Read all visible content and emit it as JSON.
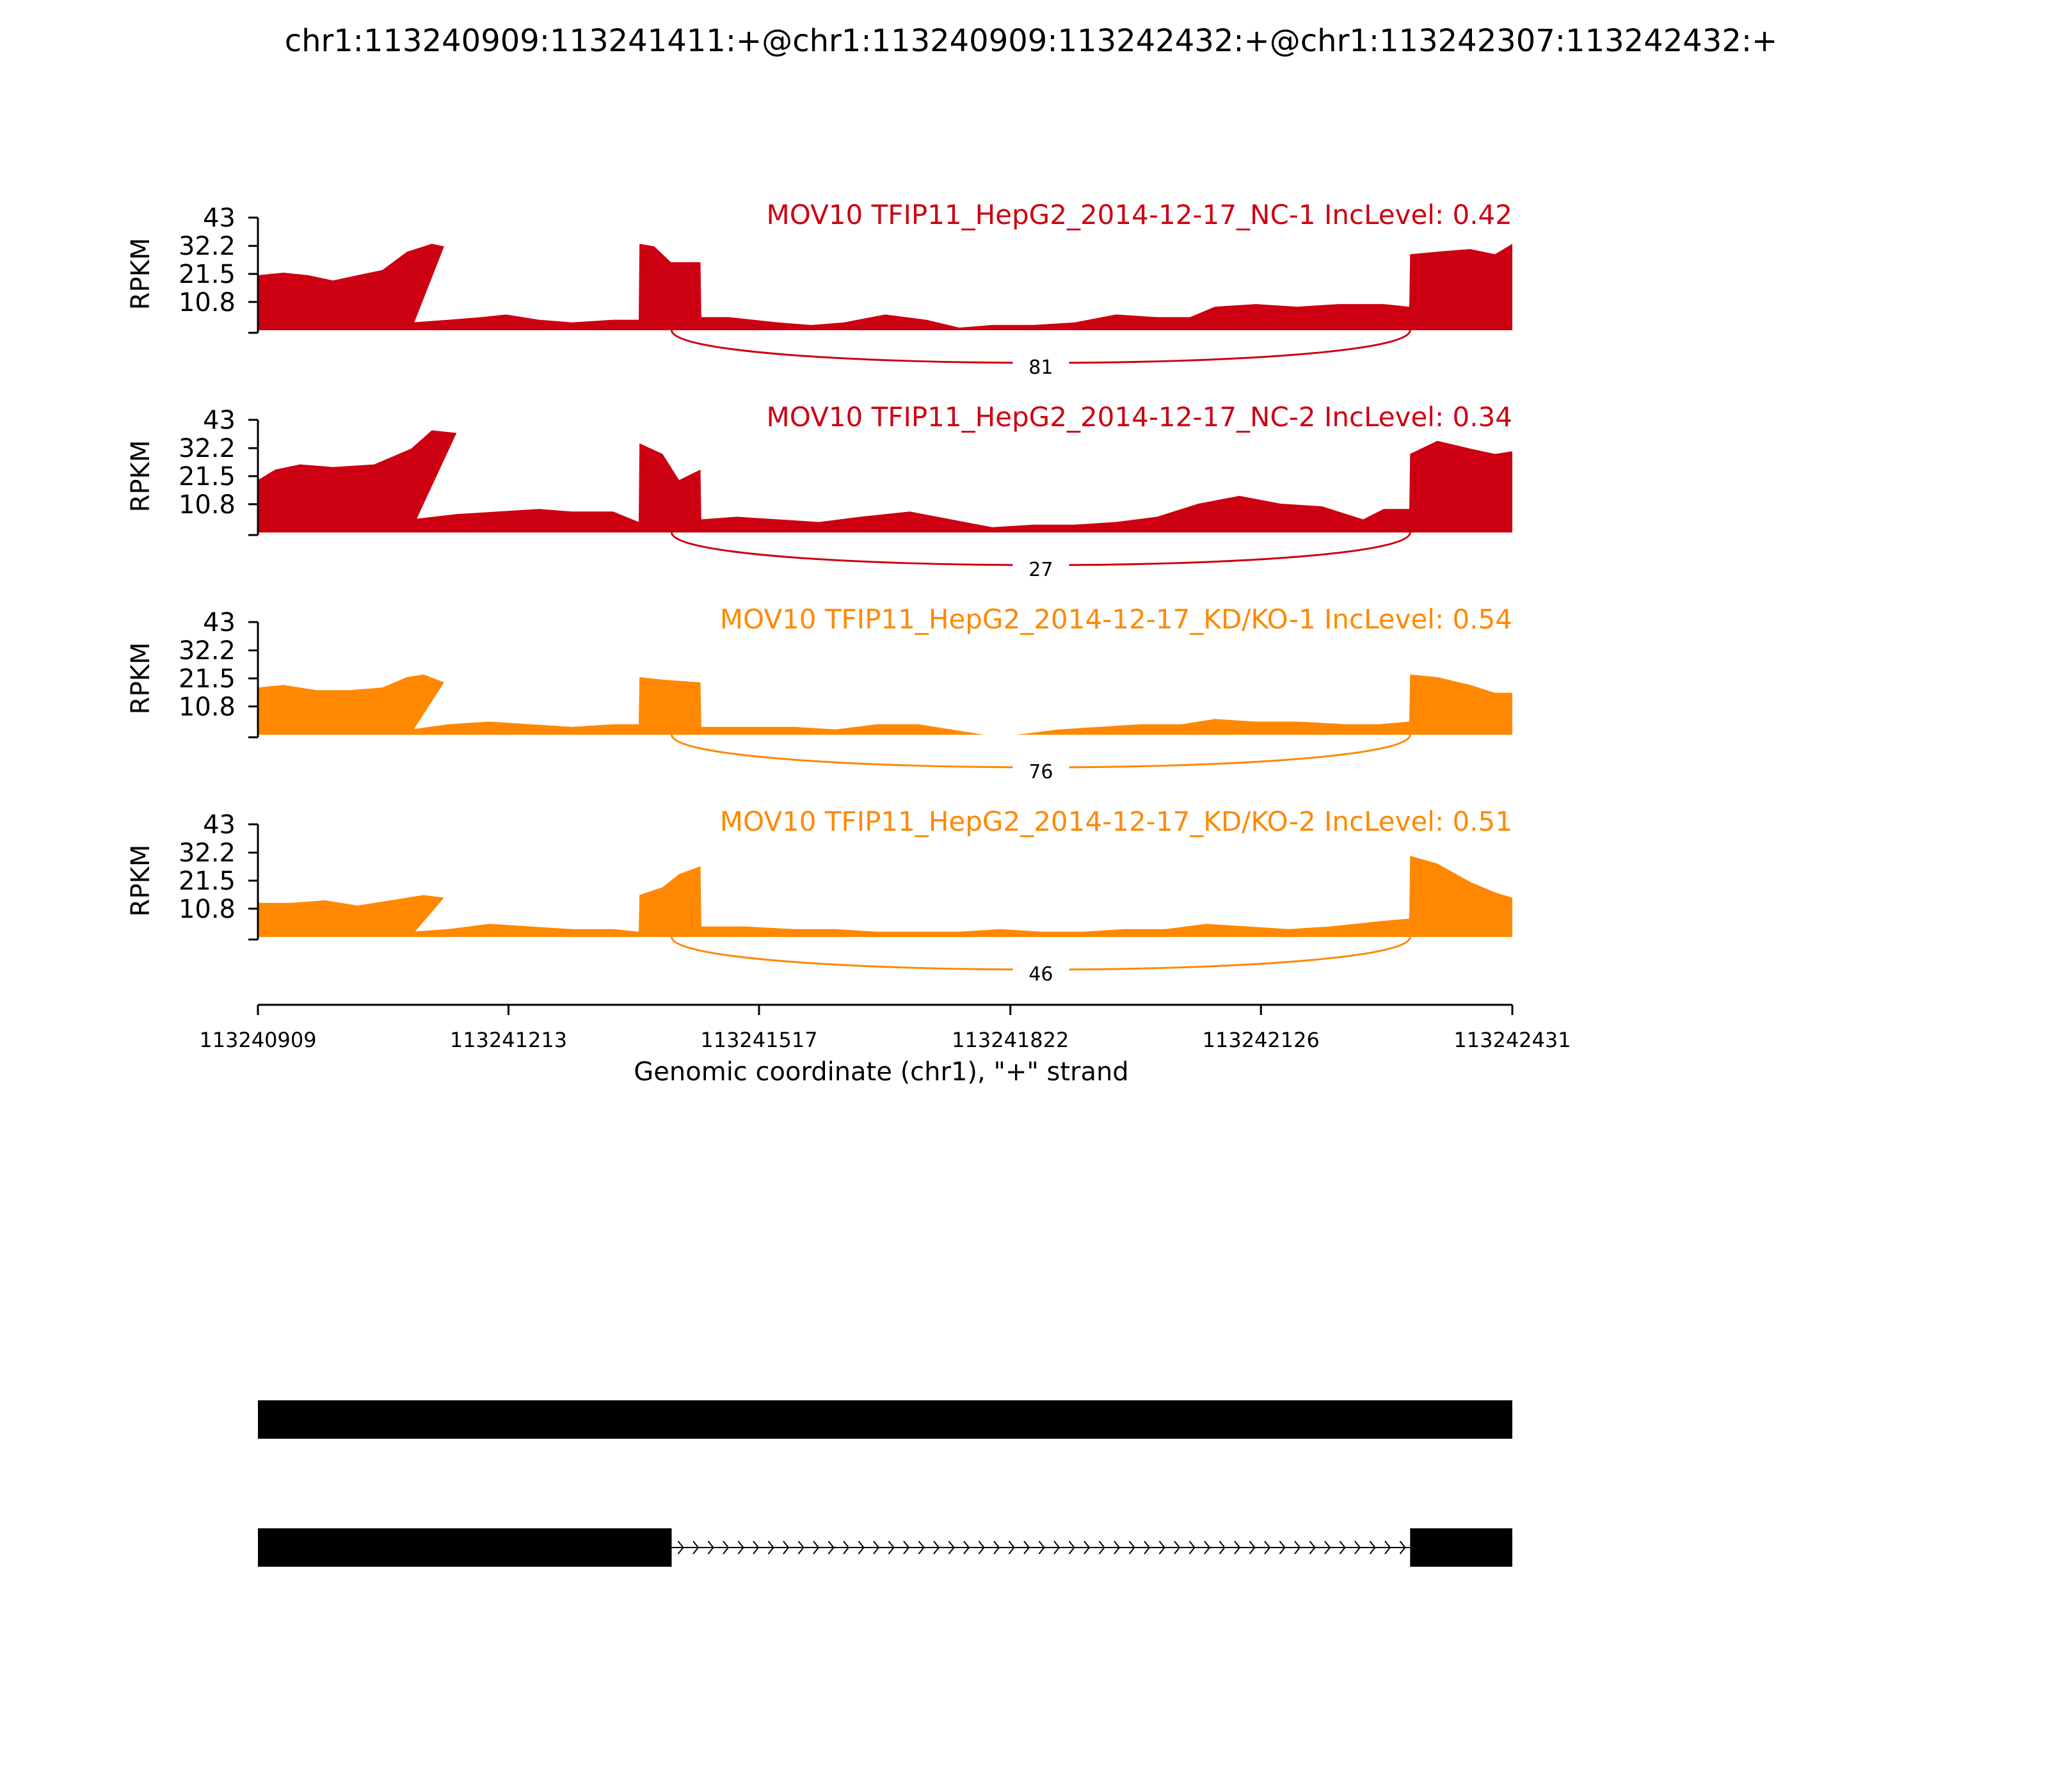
{
  "title": "chr1:113240909:113241411:+@chr1:113240909:113242432:+@chr1:113242307:113242432:+",
  "chart_data": {
    "type": "area",
    "title": "chr1:113240909:113241411:+@chr1:113240909:113242432:+@chr1:113242307:113242432:+",
    "xlabel": "Genomic coordinate (chr1), \"+\" strand",
    "ylabel": "RPKM",
    "xlim": [
      113240909,
      113242431
    ],
    "x_ticks": [
      "113240909",
      "113241213",
      "113241517",
      "113241822",
      "113242126",
      "113242431"
    ],
    "ylim": [
      0,
      43
    ],
    "y_ticks": [
      "43",
      "32.2",
      "21.5",
      "10.8"
    ],
    "tracks": [
      {
        "name": "MOV10 TFIP11_HepG2_2014-12-17_NC-1 IncLevel: 0.42",
        "color": "#cc0011",
        "junction": {
          "start": 113241411,
          "end": 113242307,
          "reads": "81"
        },
        "coverage": [
          [
            113240909,
            21
          ],
          [
            113240940,
            22
          ],
          [
            113240970,
            21
          ],
          [
            113241000,
            19
          ],
          [
            113241030,
            21
          ],
          [
            113241060,
            23
          ],
          [
            113241090,
            30
          ],
          [
            113241120,
            33
          ],
          [
            113241135,
            32
          ],
          [
            113241095,
            0
          ],
          [
            113241095,
            0
          ],
          [
            113241096,
            3
          ],
          [
            113241140,
            4
          ],
          [
            113241180,
            5
          ],
          [
            113241210,
            6
          ],
          [
            113241250,
            4
          ],
          [
            113241290,
            3
          ],
          [
            113241340,
            4
          ],
          [
            113241371,
            4
          ],
          [
            113241372,
            33
          ],
          [
            113241390,
            32
          ],
          [
            113241410,
            26
          ],
          [
            113241446,
            26
          ],
          [
            113241447,
            5
          ],
          [
            113241480,
            5
          ],
          [
            113241540,
            3
          ],
          [
            113241580,
            2
          ],
          [
            113241620,
            3
          ],
          [
            113241670,
            6
          ],
          [
            113241720,
            4
          ],
          [
            113241760,
            1
          ],
          [
            113241800,
            2
          ],
          [
            113241850,
            2
          ],
          [
            113241900,
            3
          ],
          [
            113241950,
            6
          ],
          [
            113242000,
            5
          ],
          [
            113242040,
            5
          ],
          [
            113242070,
            9
          ],
          [
            113242120,
            10
          ],
          [
            113242170,
            9
          ],
          [
            113242220,
            10
          ],
          [
            113242275,
            10
          ],
          [
            113242306,
            9
          ],
          [
            113242307,
            29
          ],
          [
            113242340,
            30
          ],
          [
            113242380,
            31
          ],
          [
            113242410,
            29
          ],
          [
            113242431,
            33
          ]
        ]
      },
      {
        "name": "MOV10 TFIP11_HepG2_2014-12-17_NC-2 IncLevel: 0.34",
        "color": "#cc0011",
        "junction": {
          "start": 113241411,
          "end": 113242307,
          "reads": "27"
        },
        "coverage": [
          [
            113240909,
            20
          ],
          [
            113240930,
            24
          ],
          [
            113240960,
            26
          ],
          [
            113241000,
            25
          ],
          [
            113241050,
            26
          ],
          [
            113241095,
            32
          ],
          [
            113241120,
            39
          ],
          [
            113241150,
            38
          ],
          [
            113241094,
            0
          ],
          [
            113241094,
            0
          ],
          [
            113241095,
            5
          ],
          [
            113241150,
            7
          ],
          [
            113241200,
            8
          ],
          [
            113241250,
            9
          ],
          [
            113241290,
            8
          ],
          [
            113241340,
            8
          ],
          [
            113241371,
            4
          ],
          [
            113241372,
            34
          ],
          [
            113241400,
            30
          ],
          [
            113241420,
            20
          ],
          [
            113241446,
            24
          ],
          [
            113241447,
            5
          ],
          [
            113241490,
            6
          ],
          [
            113241540,
            5
          ],
          [
            113241590,
            4
          ],
          [
            113241640,
            6
          ],
          [
            113241700,
            8
          ],
          [
            113241750,
            5
          ],
          [
            113241800,
            2
          ],
          [
            113241850,
            3
          ],
          [
            113241900,
            3
          ],
          [
            113241950,
            4
          ],
          [
            113242000,
            6
          ],
          [
            113242050,
            11
          ],
          [
            113242100,
            14
          ],
          [
            113242150,
            11
          ],
          [
            113242200,
            10
          ],
          [
            113242250,
            5
          ],
          [
            113242275,
            9
          ],
          [
            113242306,
            9
          ],
          [
            113242307,
            30
          ],
          [
            113242340,
            35
          ],
          [
            113242380,
            32
          ],
          [
            113242410,
            30
          ],
          [
            113242431,
            31
          ]
        ]
      },
      {
        "name": "MOV10 TFIP11_HepG2_2014-12-17_KD/KO-1 IncLevel: 0.54",
        "color": "#ff8800",
        "junction": {
          "start": 113241411,
          "end": 113242307,
          "reads": "76"
        },
        "coverage": [
          [
            113240909,
            18
          ],
          [
            113240940,
            19
          ],
          [
            113240980,
            17
          ],
          [
            113241020,
            17
          ],
          [
            113241060,
            18
          ],
          [
            113241090,
            22
          ],
          [
            113241110,
            23
          ],
          [
            113241135,
            20
          ],
          [
            113241094,
            0
          ],
          [
            113241094,
            0
          ],
          [
            113241095,
            2
          ],
          [
            113241140,
            4
          ],
          [
            113241190,
            5
          ],
          [
            113241240,
            4
          ],
          [
            113241290,
            3
          ],
          [
            113241340,
            4
          ],
          [
            113241371,
            4
          ],
          [
            113241372,
            22
          ],
          [
            113241400,
            21
          ],
          [
            113241446,
            20
          ],
          [
            113241447,
            3
          ],
          [
            113241500,
            3
          ],
          [
            113241560,
            3
          ],
          [
            113241610,
            2
          ],
          [
            113241660,
            4
          ],
          [
            113241710,
            4
          ],
          [
            113241750,
            2
          ],
          [
            113241790,
            0
          ],
          [
            113241830,
            0
          ],
          [
            113241880,
            2
          ],
          [
            113241930,
            3
          ],
          [
            113241980,
            4
          ],
          [
            113242030,
            4
          ],
          [
            113242070,
            6
          ],
          [
            113242120,
            5
          ],
          [
            113242170,
            5
          ],
          [
            113242230,
            4
          ],
          [
            113242270,
            4
          ],
          [
            113242306,
            5
          ],
          [
            113242307,
            23
          ],
          [
            113242340,
            22
          ],
          [
            113242380,
            19
          ],
          [
            113242410,
            16
          ],
          [
            113242431,
            16
          ]
        ]
      },
      {
        "name": "MOV10 TFIP11_HepG2_2014-12-17_KD/KO-2 IncLevel: 0.51",
        "color": "#ff8800",
        "junction": {
          "start": 113241411,
          "end": 113242307,
          "reads": "46"
        },
        "coverage": [
          [
            113240909,
            13
          ],
          [
            113240950,
            13
          ],
          [
            113240990,
            14
          ],
          [
            113241030,
            12
          ],
          [
            113241070,
            14
          ],
          [
            113241110,
            16
          ],
          [
            113241135,
            15
          ],
          [
            113241094,
            0
          ],
          [
            113241094,
            0
          ],
          [
            113241095,
            2
          ],
          [
            113241140,
            3
          ],
          [
            113241190,
            5
          ],
          [
            113241240,
            4
          ],
          [
            113241290,
            3
          ],
          [
            113241340,
            3
          ],
          [
            113241371,
            2
          ],
          [
            113241372,
            16
          ],
          [
            113241400,
            19
          ],
          [
            113241420,
            24
          ],
          [
            113241446,
            27
          ],
          [
            113241447,
            4
          ],
          [
            113241500,
            4
          ],
          [
            113241560,
            3
          ],
          [
            113241610,
            3
          ],
          [
            113241660,
            2
          ],
          [
            113241710,
            2
          ],
          [
            113241760,
            2
          ],
          [
            113241810,
            3
          ],
          [
            113241860,
            2
          ],
          [
            113241910,
            2
          ],
          [
            113241960,
            3
          ],
          [
            113242010,
            3
          ],
          [
            113242060,
            5
          ],
          [
            113242110,
            4
          ],
          [
            113242160,
            3
          ],
          [
            113242210,
            4
          ],
          [
            113242270,
            6
          ],
          [
            113242306,
            7
          ],
          [
            113242307,
            31
          ],
          [
            113242340,
            28
          ],
          [
            113242380,
            21
          ],
          [
            113242410,
            17
          ],
          [
            113242431,
            15
          ]
        ]
      }
    ],
    "isoforms": [
      {
        "exons": [
          [
            113240909,
            113242431
          ]
        ]
      },
      {
        "exons": [
          [
            113240909,
            113241411
          ],
          [
            113242307,
            113242431
          ]
        ]
      }
    ]
  }
}
